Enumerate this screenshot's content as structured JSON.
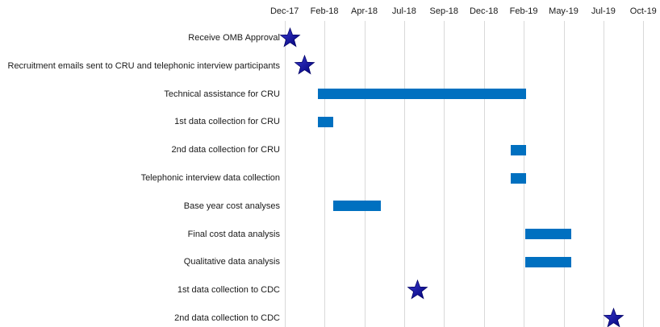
{
  "chart_data": {
    "type": "bar",
    "subtype": "gantt",
    "title": "",
    "legend": false,
    "grid": true,
    "x_axis": {
      "position": "top",
      "ticks": [
        {
          "label": "Dec-17",
          "date": "2017-12-01"
        },
        {
          "label": "Feb-18",
          "date": "2018-02-14"
        },
        {
          "label": "Apr-18",
          "date": "2018-04-30"
        },
        {
          "label": "Jul-18",
          "date": "2018-07-14"
        },
        {
          "label": "Sep-18",
          "date": "2018-09-27"
        },
        {
          "label": "Dec-18",
          "date": "2018-12-11"
        },
        {
          "label": "Feb-19",
          "date": "2019-02-24"
        },
        {
          "label": "May-19",
          "date": "2019-05-10"
        },
        {
          "label": "Jul-19",
          "date": "2019-07-24"
        },
        {
          "label": "Oct-19",
          "date": "2019-10-07"
        }
      ]
    },
    "tasks": [
      {
        "label": "Receive OMB Approval",
        "kind": "milestone",
        "date": "2017-12-12"
      },
      {
        "label": "Recruitment emails sent to CRU and telephonic interview participants",
        "kind": "milestone",
        "date": "2018-01-07"
      },
      {
        "label": "Technical assistance for CRU",
        "kind": "bar",
        "start": "2018-02-01",
        "end": "2019-03-01"
      },
      {
        "label": "1st data collection for CRU",
        "kind": "bar",
        "start": "2018-02-01",
        "end": "2018-03-03"
      },
      {
        "label": "2nd data collection for CRU",
        "kind": "bar",
        "start": "2019-01-30",
        "end": "2019-03-01"
      },
      {
        "label": "Telephonic interview data collection",
        "kind": "bar",
        "start": "2019-01-30",
        "end": "2019-03-01"
      },
      {
        "label": "Base year cost analyses",
        "kind": "bar",
        "start": "2018-03-03",
        "end": "2018-05-31"
      },
      {
        "label": "Final cost data analysis",
        "kind": "bar",
        "start": "2019-02-27",
        "end": "2019-05-25"
      },
      {
        "label": "Qualitative data analysis",
        "kind": "bar",
        "start": "2019-02-27",
        "end": "2019-05-25"
      },
      {
        "label": "1st data collection to CDC",
        "kind": "milestone",
        "date": "2018-08-08"
      },
      {
        "label": "2nd data collection to CDC",
        "kind": "milestone",
        "date": "2019-08-12"
      }
    ],
    "colors": {
      "bar": "#0070C0",
      "milestone_light": "#3B3BD0",
      "milestone_dark": "#000078",
      "milestone_outline": "#000066",
      "gridline": "#D9D9D9",
      "text": "#1A1A1A",
      "background": "#FFFFFF"
    }
  }
}
